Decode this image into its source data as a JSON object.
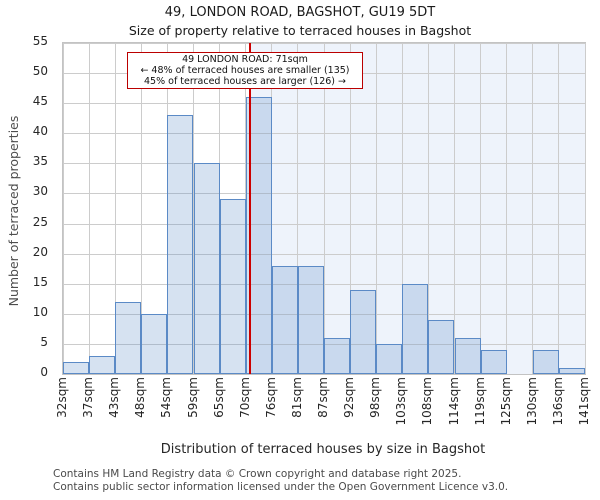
{
  "title": "49, LONDON ROAD, BAGSHOT, GU19 5DT",
  "subtitle": "Size of property relative to terraced houses in Bagshot",
  "chart_data": {
    "type": "bar",
    "title": "49, LONDON ROAD, BAGSHOT, GU19 5DT",
    "subtitle": "Size of property relative to terraced houses in Bagshot",
    "xlabel": "Distribution of terraced houses by size in Bagshot",
    "ylabel": "Number of terraced properties",
    "ylim": [
      0,
      55
    ],
    "ytick_step": 5,
    "grid": true,
    "bin_edges_sqm": [
      32,
      37,
      43,
      48,
      54,
      59,
      65,
      70,
      76,
      81,
      87,
      92,
      98,
      103,
      108,
      114,
      119,
      125,
      130,
      136,
      141
    ],
    "x_tick_labels": [
      "32sqm",
      "37sqm",
      "43sqm",
      "48sqm",
      "54sqm",
      "59sqm",
      "65sqm",
      "70sqm",
      "76sqm",
      "81sqm",
      "87sqm",
      "92sqm",
      "98sqm",
      "103sqm",
      "108sqm",
      "114sqm",
      "119sqm",
      "125sqm",
      "130sqm",
      "136sqm",
      "141sqm"
    ],
    "values": [
      2,
      3,
      12,
      10,
      43,
      35,
      29,
      46,
      18,
      18,
      6,
      14,
      5,
      15,
      9,
      6,
      4,
      0,
      4,
      1
    ],
    "marker": {
      "x_sqm": 71,
      "color": "#cc0000"
    },
    "shaded_region": {
      "from_sqm": 71,
      "to_sqm": 141,
      "color": "#eef3fb"
    },
    "annotation": {
      "line1": "49 LONDON ROAD: 71sqm",
      "line2": "← 48% of terraced houses are smaller (135)",
      "line3": "45% of terraced houses are larger (126) →"
    },
    "colors": {
      "bar_fill": "rgba(93,139,201,0.25)",
      "bar_edge": "#5b8ac6",
      "gridline": "#cccccc",
      "marker_line": "#cc0000",
      "annotation_border": "#bb0000"
    }
  },
  "footer": {
    "line1": "Contains HM Land Registry data © Crown copyright and database right 2025.",
    "line2": "Contains public sector information licensed under the Open Government Licence v3.0."
  }
}
